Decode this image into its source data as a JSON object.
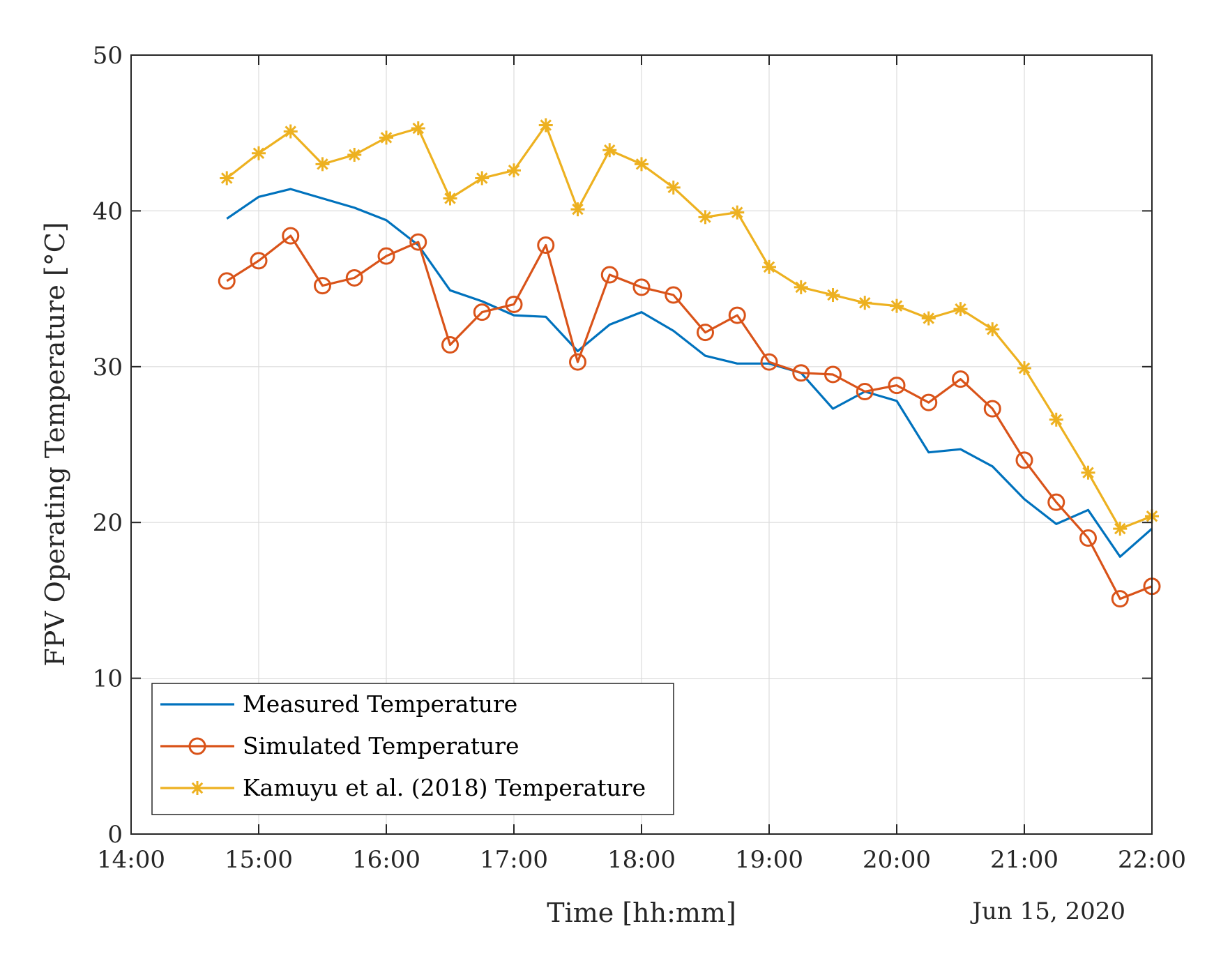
{
  "chart_data": {
    "type": "line",
    "xlabel": "Time [hh:mm]",
    "ylabel": "FPV Operating Temperature [°C]",
    "date_label": "Jun 15, 2020",
    "xlim": [
      "14:00",
      "22:00"
    ],
    "ylim": [
      0,
      50
    ],
    "x_ticks": [
      "14:00",
      "15:00",
      "16:00",
      "17:00",
      "18:00",
      "19:00",
      "20:00",
      "21:00",
      "22:00"
    ],
    "y_ticks": [
      0,
      10,
      20,
      30,
      40,
      50
    ],
    "grid": true,
    "legend_position": "bottom-left",
    "x": [
      "14:45",
      "15:00",
      "15:15",
      "15:30",
      "15:45",
      "16:00",
      "16:15",
      "16:30",
      "16:45",
      "17:00",
      "17:15",
      "17:30",
      "17:45",
      "18:00",
      "18:15",
      "18:30",
      "18:45",
      "19:00",
      "19:15",
      "19:30",
      "19:45",
      "20:00",
      "20:15",
      "20:30",
      "20:45",
      "21:00",
      "21:15",
      "21:30",
      "21:45",
      "22:00"
    ],
    "series": [
      {
        "name": "Measured Temperature",
        "color": "#0072BD",
        "marker": "none",
        "values": [
          39.5,
          40.9,
          41.4,
          40.8,
          40.2,
          39.4,
          37.8,
          34.9,
          34.2,
          33.3,
          33.2,
          31.0,
          32.7,
          33.5,
          32.3,
          30.7,
          30.2,
          30.2,
          29.6,
          27.3,
          28.4,
          27.8,
          24.5,
          24.7,
          23.6,
          21.5,
          19.9,
          20.8,
          17.8,
          19.6
        ]
      },
      {
        "name": "Simulated Temperature",
        "color": "#D95319",
        "marker": "circle",
        "values": [
          35.5,
          36.8,
          38.4,
          35.2,
          35.7,
          37.1,
          38.0,
          31.4,
          33.5,
          34.0,
          37.8,
          30.3,
          35.9,
          35.1,
          34.6,
          32.2,
          33.3,
          30.3,
          29.6,
          29.5,
          28.4,
          28.8,
          27.7,
          29.2,
          27.3,
          24.0,
          21.3,
          19.0,
          15.1,
          15.9
        ]
      },
      {
        "name": "Kamuyu et al. (2018) Temperature",
        "color": "#EDB120",
        "marker": "asterisk",
        "values": [
          42.1,
          43.7,
          45.1,
          43.0,
          43.6,
          44.7,
          45.3,
          40.8,
          42.1,
          42.6,
          45.5,
          40.1,
          43.9,
          43.0,
          41.5,
          39.6,
          39.9,
          36.4,
          35.1,
          34.6,
          34.1,
          33.9,
          33.1,
          33.7,
          32.4,
          29.9,
          26.6,
          23.2,
          19.6,
          20.4
        ]
      }
    ]
  }
}
